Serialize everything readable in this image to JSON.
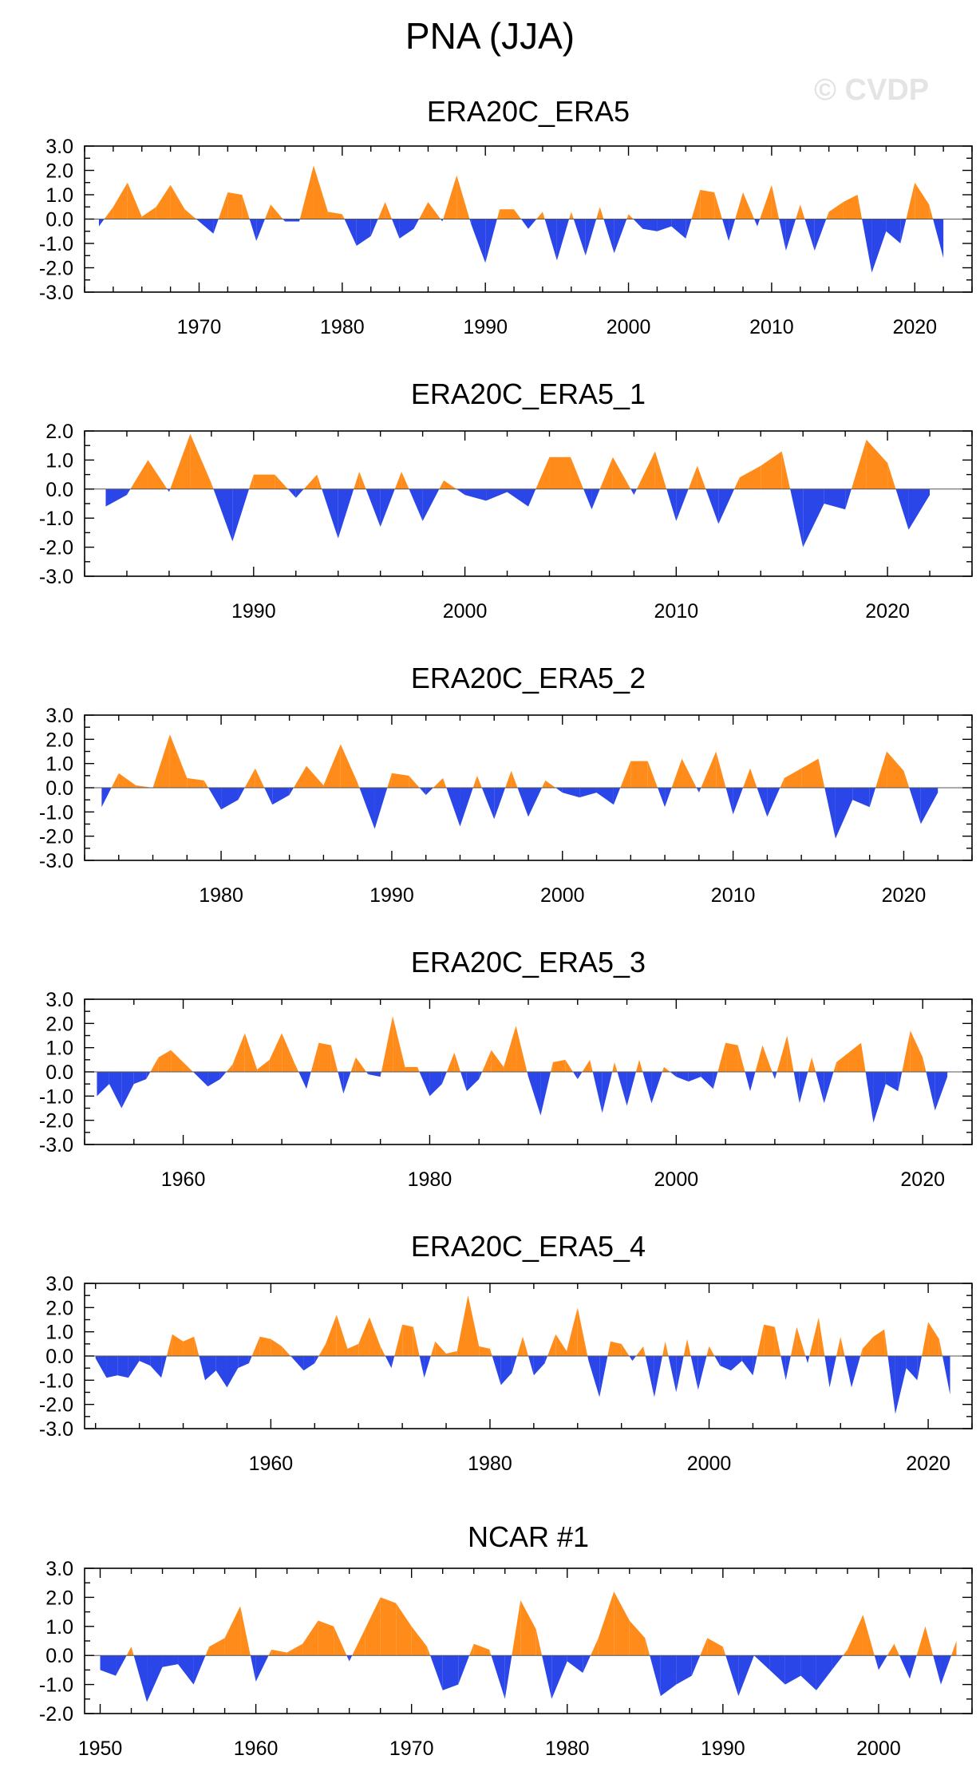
{
  "figure": {
    "title": "PNA (JJA)",
    "watermark": "© CVDP",
    "colors": {
      "positive": "#ff8c1a",
      "negative": "#2b46e8",
      "axis": "#000000",
      "zero_line": "#555555"
    }
  },
  "chart_data": [
    {
      "type": "area",
      "title": "ERA20C_ERA5",
      "xlim": [
        1962,
        2024
      ],
      "ylim": [
        -3.0,
        3.0
      ],
      "yticks": [
        3.0,
        2.0,
        1.0,
        0.0,
        -1.0,
        -2.0,
        -3.0
      ],
      "ytick_labels": [
        "3.0",
        "2.0",
        "1.0",
        "0.0",
        "-1.0",
        "-2.0",
        "-3.0"
      ],
      "xticks": [
        1970,
        1980,
        1990,
        2000,
        2010,
        2020
      ],
      "xtick_labels": [
        "1970",
        "1980",
        "1990",
        "2000",
        "2010",
        "2020"
      ],
      "x": [
        1963,
        1964,
        1965,
        1966,
        1967,
        1968,
        1969,
        1970,
        1971,
        1972,
        1973,
        1974,
        1975,
        1976,
        1977,
        1978,
        1979,
        1980,
        1981,
        1982,
        1983,
        1984,
        1985,
        1986,
        1987,
        1988,
        1989,
        1990,
        1991,
        1992,
        1993,
        1994,
        1995,
        1996,
        1997,
        1998,
        1999,
        2000,
        2001,
        2002,
        2003,
        2004,
        2005,
        2006,
        2007,
        2008,
        2009,
        2010,
        2011,
        2012,
        2013,
        2014,
        2015,
        2016,
        2017,
        2018,
        2019,
        2020,
        2021,
        2022
      ],
      "values": [
        -0.3,
        0.5,
        1.5,
        0.1,
        0.5,
        1.4,
        0.4,
        -0.1,
        -0.6,
        1.1,
        1.0,
        -0.9,
        0.6,
        -0.1,
        -0.1,
        2.2,
        0.3,
        0.2,
        -1.1,
        -0.7,
        0.7,
        -0.8,
        -0.4,
        0.7,
        -0.1,
        1.8,
        -0.2,
        -1.8,
        0.4,
        0.4,
        -0.4,
        0.3,
        -1.7,
        0.3,
        -1.5,
        0.5,
        -1.4,
        0.2,
        -0.4,
        -0.5,
        -0.3,
        -0.8,
        1.2,
        1.1,
        -0.9,
        1.1,
        -0.3,
        1.4,
        -1.3,
        0.6,
        -1.3,
        0.3,
        0.7,
        1.0,
        -2.2,
        -0.5,
        -1.0,
        1.5,
        0.6,
        -1.6
      ]
    },
    {
      "type": "area",
      "title": "ERA20C_ERA5_1",
      "xlim": [
        1982,
        2024
      ],
      "ylim": [
        -3.0,
        2.0
      ],
      "yticks": [
        2.0,
        1.0,
        0.0,
        -1.0,
        -2.0,
        -3.0
      ],
      "ytick_labels": [
        "2.0",
        "1.0",
        "0.0",
        "-1.0",
        "-2.0",
        "-3.0"
      ],
      "xticks": [
        1990,
        2000,
        2010,
        2020
      ],
      "xtick_labels": [
        "1990",
        "2000",
        "2010",
        "2020"
      ],
      "x": [
        1983,
        1984,
        1985,
        1986,
        1987,
        1988,
        1989,
        1990,
        1991,
        1992,
        1993,
        1994,
        1995,
        1996,
        1997,
        1998,
        1999,
        2000,
        2001,
        2002,
        2003,
        2004,
        2005,
        2006,
        2007,
        2008,
        2009,
        2010,
        2011,
        2012,
        2013,
        2014,
        2015,
        2016,
        2017,
        2018,
        2019,
        2020,
        2021,
        2022
      ],
      "values": [
        -0.6,
        -0.2,
        1.0,
        -0.1,
        1.9,
        0.2,
        -1.8,
        0.5,
        0.5,
        -0.3,
        0.5,
        -1.7,
        0.6,
        -1.3,
        0.6,
        -1.1,
        0.3,
        -0.2,
        -0.4,
        -0.1,
        -0.6,
        1.1,
        1.1,
        -0.7,
        1.1,
        -0.2,
        1.3,
        -1.1,
        0.8,
        -1.2,
        0.4,
        0.8,
        1.3,
        -2.0,
        -0.5,
        -0.7,
        1.7,
        0.9,
        -1.4,
        -0.2
      ]
    },
    {
      "type": "area",
      "title": "ERA20C_ERA5_2",
      "xlim": [
        1972,
        2024
      ],
      "ylim": [
        -3.0,
        3.0
      ],
      "yticks": [
        3.0,
        2.0,
        1.0,
        0.0,
        -1.0,
        -2.0,
        -3.0
      ],
      "ytick_labels": [
        "3.0",
        "2.0",
        "1.0",
        "0.0",
        "-1.0",
        "-2.0",
        "-3.0"
      ],
      "xticks": [
        1980,
        1990,
        2000,
        2010,
        2020
      ],
      "xtick_labels": [
        "1980",
        "1990",
        "2000",
        "2010",
        "2020"
      ],
      "x": [
        1973,
        1974,
        1975,
        1976,
        1977,
        1978,
        1979,
        1980,
        1981,
        1982,
        1983,
        1984,
        1985,
        1986,
        1987,
        1988,
        1989,
        1990,
        1991,
        1992,
        1993,
        1994,
        1995,
        1996,
        1997,
        1998,
        1999,
        2000,
        2001,
        2002,
        2003,
        2004,
        2005,
        2006,
        2007,
        2008,
        2009,
        2010,
        2011,
        2012,
        2013,
        2014,
        2015,
        2016,
        2017,
        2018,
        2019,
        2020,
        2021,
        2022
      ],
      "values": [
        -0.8,
        0.6,
        0.1,
        0.0,
        2.2,
        0.4,
        0.3,
        -0.9,
        -0.5,
        0.8,
        -0.7,
        -0.3,
        0.9,
        0.1,
        1.8,
        0.2,
        -1.7,
        0.6,
        0.5,
        -0.3,
        0.4,
        -1.6,
        0.5,
        -1.3,
        0.7,
        -1.2,
        0.3,
        -0.2,
        -0.4,
        -0.2,
        -0.7,
        1.1,
        1.1,
        -0.8,
        1.2,
        -0.2,
        1.5,
        -1.1,
        0.8,
        -1.2,
        0.4,
        0.8,
        1.2,
        -2.1,
        -0.5,
        -0.8,
        1.5,
        0.7,
        -1.5,
        -0.2
      ]
    },
    {
      "type": "area",
      "title": "ERA20C_ERA5_3",
      "xlim": [
        1952,
        2024
      ],
      "ylim": [
        -3.0,
        3.0
      ],
      "yticks": [
        3.0,
        2.0,
        1.0,
        0.0,
        -1.0,
        -2.0,
        -3.0
      ],
      "ytick_labels": [
        "3.0",
        "2.0",
        "1.0",
        "0.0",
        "-1.0",
        "-2.0",
        "-3.0"
      ],
      "xticks": [
        1960,
        1980,
        2000,
        2020
      ],
      "xtick_labels": [
        "1960",
        "1980",
        "2000",
        "2020"
      ],
      "x": [
        1953,
        1954,
        1955,
        1956,
        1957,
        1958,
        1959,
        1960,
        1961,
        1962,
        1963,
        1964,
        1965,
        1966,
        1967,
        1968,
        1969,
        1970,
        1971,
        1972,
        1973,
        1974,
        1975,
        1976,
        1977,
        1978,
        1979,
        1980,
        1981,
        1982,
        1983,
        1984,
        1985,
        1986,
        1987,
        1988,
        1989,
        1990,
        1991,
        1992,
        1993,
        1994,
        1995,
        1996,
        1997,
        1998,
        1999,
        2000,
        2001,
        2002,
        2003,
        2004,
        2005,
        2006,
        2007,
        2008,
        2009,
        2010,
        2011,
        2012,
        2013,
        2014,
        2015,
        2016,
        2017,
        2018,
        2019,
        2020,
        2021,
        2022
      ],
      "values": [
        -1.0,
        -0.5,
        -1.5,
        -0.5,
        -0.3,
        0.6,
        0.9,
        0.4,
        -0.1,
        -0.6,
        -0.3,
        0.3,
        1.6,
        0.1,
        0.5,
        1.6,
        0.4,
        -0.7,
        1.2,
        1.1,
        -0.9,
        0.6,
        -0.1,
        -0.2,
        2.3,
        0.2,
        0.2,
        -1.0,
        -0.5,
        0.8,
        -0.8,
        -0.3,
        0.9,
        0.2,
        1.9,
        -0.2,
        -1.8,
        0.4,
        0.5,
        -0.3,
        0.5,
        -1.7,
        0.4,
        -1.4,
        0.5,
        -1.3,
        0.2,
        -0.2,
        -0.4,
        -0.2,
        -0.7,
        1.2,
        1.1,
        -0.8,
        1.1,
        -0.3,
        1.5,
        -1.3,
        0.6,
        -1.3,
        0.4,
        0.8,
        1.2,
        -2.1,
        -0.5,
        -0.8,
        1.7,
        0.6,
        -1.6,
        -0.2
      ]
    },
    {
      "type": "area",
      "title": "ERA20C_ERA5_4",
      "xlim": [
        1943,
        2024
      ],
      "ylim": [
        -3.0,
        3.0
      ],
      "yticks": [
        3.0,
        2.0,
        1.0,
        0.0,
        -1.0,
        -2.0,
        -3.0
      ],
      "ytick_labels": [
        "3.0",
        "2.0",
        "1.0",
        "0.0",
        "-1.0",
        "-2.0",
        "-3.0"
      ],
      "xticks": [
        1960,
        1980,
        2000,
        2020
      ],
      "xtick_labels": [
        "1960",
        "1980",
        "2000",
        "2020"
      ],
      "x": [
        1944,
        1945,
        1946,
        1947,
        1948,
        1949,
        1950,
        1951,
        1952,
        1953,
        1954,
        1955,
        1956,
        1957,
        1958,
        1959,
        1960,
        1961,
        1962,
        1963,
        1964,
        1965,
        1966,
        1967,
        1968,
        1969,
        1970,
        1971,
        1972,
        1973,
        1974,
        1975,
        1976,
        1977,
        1978,
        1979,
        1980,
        1981,
        1982,
        1983,
        1984,
        1985,
        1986,
        1987,
        1988,
        1989,
        1990,
        1991,
        1992,
        1993,
        1994,
        1995,
        1996,
        1997,
        1998,
        1999,
        2000,
        2001,
        2002,
        2003,
        2004,
        2005,
        2006,
        2007,
        2008,
        2009,
        2010,
        2011,
        2012,
        2013,
        2014,
        2015,
        2016,
        2017,
        2018,
        2019,
        2020,
        2021,
        2022
      ],
      "values": [
        -0.1,
        -0.9,
        -0.8,
        -0.9,
        -0.2,
        -0.4,
        -0.9,
        0.9,
        0.6,
        0.8,
        -1.0,
        -0.6,
        -1.3,
        -0.5,
        -0.3,
        0.8,
        0.7,
        0.4,
        -0.1,
        -0.6,
        -0.3,
        0.5,
        1.7,
        0.3,
        0.5,
        1.6,
        0.4,
        -0.5,
        1.3,
        1.2,
        -0.9,
        0.6,
        0.1,
        0.2,
        2.5,
        0.4,
        0.3,
        -1.2,
        -0.7,
        0.8,
        -0.8,
        -0.3,
        0.9,
        0.2,
        2.0,
        -0.2,
        -1.7,
        0.6,
        0.5,
        -0.2,
        0.4,
        -1.7,
        0.6,
        -1.5,
        0.7,
        -1.4,
        0.4,
        -0.4,
        -0.6,
        -0.2,
        -0.8,
        1.3,
        1.2,
        -1.0,
        1.2,
        -0.3,
        1.6,
        -1.3,
        0.8,
        -1.3,
        0.3,
        0.8,
        1.1,
        -2.4,
        -0.5,
        -1.0,
        1.4,
        0.7,
        -1.6
      ]
    },
    {
      "type": "area",
      "title": "NCAR #1",
      "xlim": [
        1949,
        2006
      ],
      "ylim": [
        -2.0,
        3.0
      ],
      "yticks": [
        3.0,
        2.0,
        1.0,
        0.0,
        -1.0,
        -2.0
      ],
      "ytick_labels": [
        "3.0",
        "2.0",
        "1.0",
        "0.0",
        "-1.0",
        "-2.0"
      ],
      "xticks": [
        1950,
        1960,
        1970,
        1980,
        1990,
        2000
      ],
      "xtick_labels": [
        "1950",
        "1960",
        "1970",
        "1980",
        "1990",
        "2000"
      ],
      "x": [
        1950,
        1951,
        1952,
        1953,
        1954,
        1955,
        1956,
        1957,
        1958,
        1959,
        1960,
        1961,
        1962,
        1963,
        1964,
        1965,
        1966,
        1967,
        1968,
        1969,
        1970,
        1971,
        1972,
        1973,
        1974,
        1975,
        1976,
        1977,
        1978,
        1979,
        1980,
        1981,
        1982,
        1983,
        1984,
        1985,
        1986,
        1987,
        1988,
        1989,
        1990,
        1991,
        1992,
        1993,
        1994,
        1995,
        1996,
        1997,
        1998,
        1999,
        2000,
        2001,
        2002,
        2003,
        2004,
        2005
      ],
      "values": [
        -0.5,
        -0.7,
        0.3,
        -1.6,
        -0.4,
        -0.3,
        -1.0,
        0.3,
        0.6,
        1.7,
        -0.9,
        0.2,
        0.1,
        0.4,
        1.2,
        1.0,
        -0.2,
        0.9,
        2.0,
        1.8,
        1.0,
        0.3,
        -1.2,
        -1.0,
        0.4,
        0.2,
        -1.5,
        1.9,
        0.9,
        -1.5,
        -0.2,
        -0.6,
        0.6,
        2.2,
        1.2,
        0.6,
        -1.4,
        -1.0,
        -0.7,
        0.6,
        0.3,
        -1.4,
        0.0,
        -0.5,
        -1.0,
        -0.7,
        -1.2,
        -0.5,
        0.2,
        1.4,
        -0.5,
        0.4,
        -0.8,
        1.0,
        -1.0,
        0.5
      ]
    }
  ]
}
